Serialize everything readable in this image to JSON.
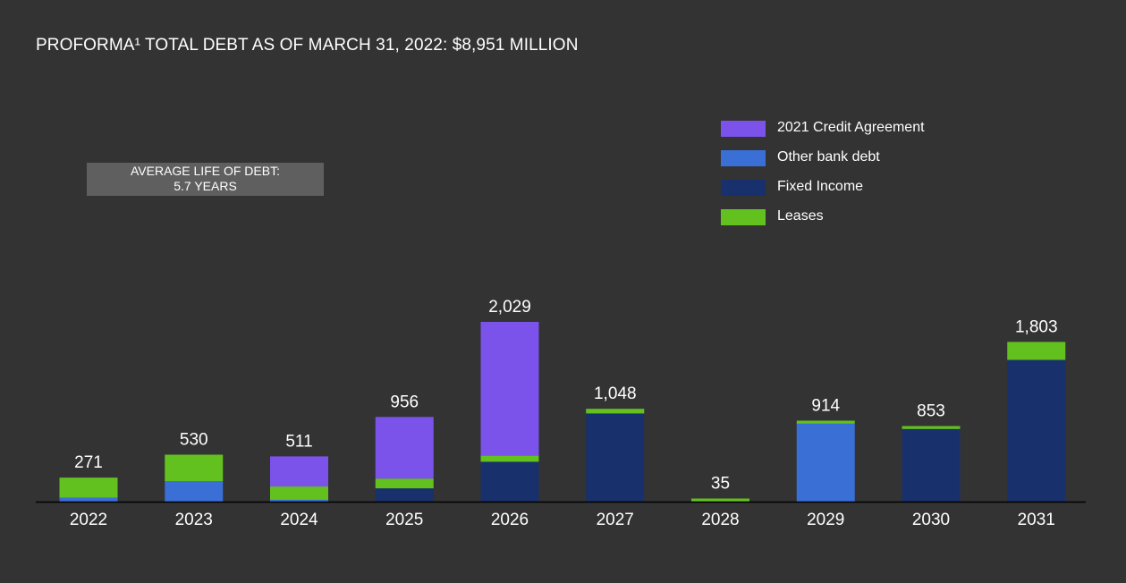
{
  "title": "PROFORMA¹ TOTAL DEBT AS OF MARCH 31, 2022: $8,951 MILLION",
  "avg_life": {
    "line1": "AVERAGE LIFE OF DEBT:",
    "line2": "5.7 YEARS"
  },
  "colors": {
    "background": "#333333",
    "credit_agreement": "#7b53ea",
    "other_bank_debt": "#3a6fd6",
    "fixed_income": "#18306b",
    "leases": "#63c11f",
    "avg_box": "#5f5f5f",
    "axis": "#000000"
  },
  "legend": [
    {
      "label": "2021 Credit Agreement",
      "color": "#7b53ea"
    },
    {
      "label": "Other bank debt",
      "color": "#3a6fd6"
    },
    {
      "label": "Fixed Income",
      "color": "#18306b"
    },
    {
      "label": "Leases",
      "color": "#63c11f"
    }
  ],
  "chart_data": {
    "type": "bar",
    "stacked": true,
    "title": "PROFORMA¹ TOTAL DEBT AS OF MARCH 31, 2022: $8,951 MILLION",
    "categories": [
      "2022",
      "2023",
      "2024",
      "2025",
      "2026",
      "2027",
      "2028",
      "2029",
      "2030",
      "2031"
    ],
    "totals_labels": [
      "271",
      "530",
      "511",
      "956",
      "2,029",
      "1,048",
      "35",
      "914",
      "853",
      "1,803"
    ],
    "series": [
      {
        "name": "Fixed Income",
        "color": "#18306b",
        "values": [
          0,
          0,
          0,
          150,
          450,
          995,
          0,
          0,
          820,
          1600
        ]
      },
      {
        "name": "Other bank debt",
        "color": "#3a6fd6",
        "values": [
          45,
          230,
          20,
          0,
          0,
          0,
          0,
          880,
          0,
          0
        ]
      },
      {
        "name": "Leases",
        "color": "#63c11f",
        "values": [
          226,
          300,
          151,
          110,
          69,
          53,
          35,
          34,
          33,
          203
        ]
      },
      {
        "name": "2021 Credit Agreement",
        "color": "#7b53ea",
        "values": [
          0,
          0,
          340,
          696,
          1510,
          0,
          0,
          0,
          0,
          0
        ]
      }
    ],
    "ylim": [
      0,
      2029
    ],
    "grid": false,
    "legend_position": "top-right"
  }
}
